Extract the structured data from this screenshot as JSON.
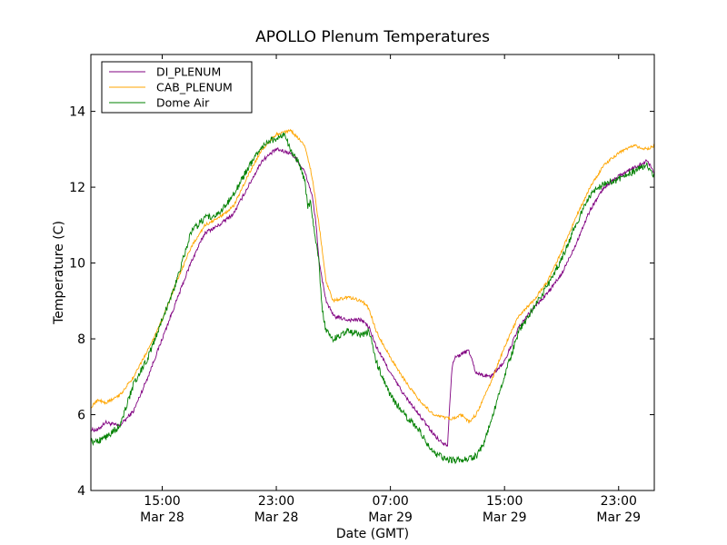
{
  "chart_data": {
    "type": "line",
    "title": "APOLLO Plenum Temperatures",
    "xlabel": "Date (GMT)",
    "ylabel": "Temperature (C)",
    "x_unit": "hours since Mar 28 10:00 GMT",
    "xlim": [
      0,
      39.5
    ],
    "ylim": [
      4,
      15.5
    ],
    "yticks": [
      4,
      6,
      8,
      10,
      12,
      14
    ],
    "xticks": [
      {
        "x": 5,
        "time": "15:00",
        "date": "Mar 28"
      },
      {
        "x": 13,
        "time": "23:00",
        "date": "Mar 28"
      },
      {
        "x": 21,
        "time": "07:00",
        "date": "Mar 29"
      },
      {
        "x": 29,
        "time": "15:00",
        "date": "Mar 29"
      },
      {
        "x": 37,
        "time": "23:00",
        "date": "Mar 29"
      }
    ],
    "legend_position": "top-left",
    "series": [
      {
        "name": "DI_PLENUM",
        "color": "#800080",
        "noise": 0.05,
        "x": [
          0,
          0.5,
          1.0,
          2.0,
          3.0,
          4.0,
          5.0,
          6.0,
          7.0,
          8.0,
          9.0,
          10.0,
          11.0,
          12.0,
          13.0,
          14.0,
          14.5,
          15.0,
          15.5,
          15.8,
          16.0,
          16.5,
          17.0,
          18.0,
          19.0,
          19.5,
          20.0,
          21.0,
          22.0,
          23.0,
          24.0,
          24.5,
          25.0,
          25.3,
          25.5,
          26.0,
          26.5,
          27.0,
          28.0,
          29.0,
          30.0,
          31.0,
          32.0,
          33.0,
          34.0,
          35.0,
          36.0,
          37.0,
          38.0,
          39.0,
          39.5
        ],
        "y": [
          5.6,
          5.6,
          5.8,
          5.7,
          6.1,
          7.0,
          8.0,
          9.0,
          10.0,
          10.8,
          11.0,
          11.3,
          12.0,
          12.7,
          13.0,
          12.9,
          12.7,
          12.4,
          11.8,
          11.0,
          10.0,
          9.0,
          8.6,
          8.5,
          8.5,
          8.3,
          7.8,
          7.1,
          6.5,
          6.0,
          5.5,
          5.3,
          5.2,
          7.2,
          7.5,
          7.6,
          7.7,
          7.1,
          7.0,
          7.4,
          8.3,
          8.8,
          9.2,
          9.7,
          10.5,
          11.4,
          12.0,
          12.3,
          12.5,
          12.7,
          12.4
        ]
      },
      {
        "name": "CAB_PLENUM",
        "color": "#FFA500",
        "noise": 0.04,
        "x": [
          0,
          0.5,
          1.0,
          2.0,
          3.0,
          4.0,
          5.0,
          6.0,
          7.0,
          8.0,
          9.0,
          10.0,
          11.0,
          12.0,
          13.0,
          14.0,
          15.0,
          15.5,
          16.0,
          16.5,
          17.0,
          18.0,
          19.0,
          19.5,
          20.0,
          21.0,
          22.0,
          23.0,
          24.0,
          25.0,
          25.5,
          26.0,
          26.5,
          27.0,
          28.0,
          29.0,
          30.0,
          31.0,
          32.0,
          33.0,
          34.0,
          35.0,
          36.0,
          37.0,
          38.0,
          39.0,
          39.5
        ],
        "y": [
          6.2,
          6.4,
          6.3,
          6.5,
          7.0,
          7.7,
          8.5,
          9.5,
          10.4,
          11.0,
          11.2,
          11.5,
          12.3,
          13.0,
          13.4,
          13.5,
          13.1,
          12.3,
          11.0,
          9.5,
          9.0,
          9.1,
          9.0,
          8.8,
          8.2,
          7.5,
          6.9,
          6.4,
          6.0,
          5.9,
          5.9,
          6.0,
          5.8,
          6.0,
          6.8,
          7.8,
          8.6,
          9.0,
          9.5,
          10.3,
          11.2,
          12.0,
          12.6,
          12.9,
          13.1,
          13.0,
          13.1
        ]
      },
      {
        "name": "Dome Air",
        "color": "#008000",
        "noise": 0.09,
        "x": [
          0,
          0.5,
          1.0,
          2.0,
          3.0,
          4.0,
          5.0,
          6.0,
          7.0,
          8.0,
          9.0,
          10.0,
          11.0,
          12.0,
          13.0,
          13.5,
          14.0,
          14.5,
          15.0,
          15.2,
          15.4,
          15.6,
          16.0,
          16.2,
          16.5,
          17.0,
          18.0,
          19.0,
          19.5,
          20.0,
          21.0,
          22.0,
          23.0,
          24.0,
          25.0,
          26.0,
          27.0,
          27.5,
          28.0,
          29.0,
          30.0,
          31.0,
          32.0,
          33.0,
          34.0,
          35.0,
          36.0,
          37.0,
          38.0,
          39.0,
          39.5
        ],
        "y": [
          5.3,
          5.3,
          5.4,
          5.7,
          6.8,
          7.5,
          8.5,
          9.5,
          10.8,
          11.2,
          11.3,
          11.8,
          12.5,
          13.1,
          13.3,
          13.4,
          13.0,
          12.7,
          12.2,
          11.5,
          11.6,
          11.0,
          10.0,
          8.8,
          8.2,
          8.0,
          8.2,
          8.1,
          8.2,
          7.4,
          6.5,
          6.0,
          5.6,
          5.0,
          4.8,
          4.8,
          4.9,
          5.2,
          5.8,
          7.0,
          8.2,
          8.8,
          9.4,
          10.1,
          11.0,
          11.8,
          12.1,
          12.2,
          12.4,
          12.6,
          12.3
        ]
      }
    ]
  }
}
